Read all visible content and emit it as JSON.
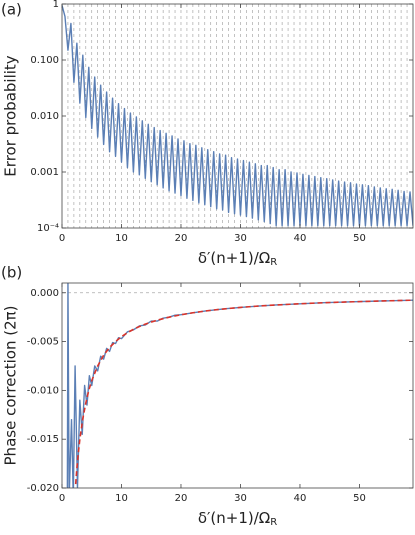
{
  "chart_data": [
    {
      "type": "line",
      "panel_label": "(a)",
      "ylabel": "Error probability",
      "xlabel": "δ′(n+1)/Ω",
      "xlabel_sub": "R",
      "log_y": true,
      "color": "#5b7fb5",
      "xlim": [
        0,
        59
      ],
      "xticks": [
        0,
        10,
        20,
        30,
        40,
        50
      ],
      "ylim": [
        0.0001,
        1
      ],
      "yticks": [
        {
          "value": 0.0001,
          "label": "10⁻⁴"
        },
        0.001,
        {
          "value": 0.01,
          "label": "0.010"
        },
        {
          "value": 0.1,
          "label": "0.100"
        },
        1
      ],
      "xgrid": [
        1,
        2,
        3,
        4,
        5,
        6,
        7,
        8,
        9,
        10,
        11,
        12,
        13,
        14,
        15,
        16,
        17,
        18,
        19,
        20,
        21,
        22,
        23,
        24,
        25,
        26,
        27,
        28,
        29,
        30,
        31,
        32,
        33,
        34,
        35,
        36,
        37,
        38,
        39,
        40,
        41,
        42,
        43,
        44,
        45,
        46,
        47,
        48,
        49,
        50,
        51,
        52,
        53,
        54,
        55,
        56,
        57,
        58
      ],
      "x": [
        0,
        0.5,
        1,
        1.5,
        2,
        2.5,
        3,
        3.5,
        4,
        4.5,
        5,
        5.5,
        6,
        6.5,
        7,
        7.5,
        8,
        8.5,
        9,
        9.5,
        10,
        10.5,
        11,
        11.5,
        12,
        12.5,
        13,
        13.5,
        14,
        14.5,
        15,
        15.5,
        16,
        16.5,
        17,
        17.5,
        18,
        18.5,
        19,
        19.5,
        20,
        20.5,
        21,
        21.5,
        22,
        22.5,
        23,
        23.5,
        24,
        24.5,
        25,
        25.5,
        26,
        26.5,
        27,
        27.5,
        28,
        28.5,
        29,
        29.5,
        30,
        30.5,
        31,
        31.5,
        32,
        32.5,
        33,
        33.5,
        34,
        34.5,
        35,
        35.5,
        36,
        36.5,
        37,
        37.5,
        38,
        38.5,
        39,
        39.5,
        40,
        40.5,
        41,
        41.5,
        42,
        42.5,
        43,
        43.5,
        44,
        44.5,
        45,
        45.5,
        46,
        46.5,
        47,
        47.5,
        48,
        48.5,
        49,
        49.5,
        50,
        50.5,
        51,
        51.5,
        52,
        52.5,
        53,
        53.5,
        54,
        54.5,
        55,
        55.5,
        56,
        56.5,
        57,
        57.5,
        58,
        58.5,
        59
      ],
      "values": [
        0.95,
        0.6,
        0.15,
        0.45,
        0.04,
        0.2,
        0.017,
        0.122,
        0.0094,
        0.074,
        0.006,
        0.0496,
        0.0042,
        0.0355,
        0.0031,
        0.0267,
        0.0023,
        0.0208,
        0.0019,
        0.0166,
        0.0015,
        0.0136,
        0.0012,
        0.0113,
        0.001,
        0.0096,
        0.00089,
        0.0082,
        0.00077,
        0.0071,
        0.00067,
        0.0062,
        0.00059,
        0.0055,
        0.00052,
        0.0049,
        0.00046,
        0.0044,
        0.00042,
        0.0039,
        0.00038,
        0.0036,
        0.00034,
        0.0032,
        0.00031,
        0.003,
        0.00028,
        0.0027,
        0.00026,
        0.0025,
        0.00024,
        0.0023,
        0.00022,
        0.0021,
        0.00021,
        0.002,
        0.00019,
        0.0018,
        0.00018,
        0.0017,
        0.00017,
        0.0016,
        0.00016,
        0.0015,
        0.00015,
        0.0014,
        0.00014,
        0.0013,
        0.00013,
        0.0013,
        0.00012,
        0.0012,
        0.00011,
        0.0011,
        0.00011,
        0.0011,
        0.00011,
        0.001,
        0.00011,
        0.00096,
        0.00011,
        0.00091,
        0.00011,
        0.00087,
        0.00011,
        0.00083,
        0.00011,
        0.00079,
        0.00011,
        0.00076,
        0.00011,
        0.00072,
        0.00011,
        0.00069,
        0.00011,
        0.00066,
        0.00011,
        0.00064,
        0.00011,
        0.00061,
        0.00011,
        0.00059,
        0.00011,
        0.00057,
        0.00011,
        0.00054,
        0.00011,
        0.00052,
        0.00011,
        0.0005,
        0.00011,
        0.00049,
        0.00011,
        0.00047,
        0.00011,
        0.00045,
        0.00011,
        0.00044,
        0.00011
      ]
    },
    {
      "type": "line",
      "panel_label": "(b)",
      "ylabel": "Phase correction (2π)",
      "xlabel": "δ′(n+1)/Ω",
      "xlabel_sub": "R",
      "xlim": [
        0,
        59
      ],
      "xticks": [
        0,
        10,
        20,
        30,
        40,
        50
      ],
      "ylim": [
        -0.02,
        0.001
      ],
      "yticks": [
        {
          "value": 0,
          "label": "0.000"
        },
        -0.005,
        {
          "value": -0.01,
          "label": "-0.010"
        },
        -0.015,
        {
          "value": -0.02,
          "label": "-0.020"
        }
      ],
      "hline": 0,
      "series": [
        {
          "color": "#5b7fb5",
          "dash": false,
          "x": [
            0.9,
            1,
            1.2,
            1.6,
            1.9,
            2.2,
            2.6,
            3,
            3.4,
            3.8,
            4.2,
            4.6,
            5,
            5.5,
            6,
            6.5,
            7,
            7.5,
            8,
            8.5,
            9,
            9.5,
            10,
            11,
            12,
            13,
            14,
            15,
            16,
            17,
            18,
            19,
            20,
            22,
            24,
            26,
            28,
            30,
            33,
            36,
            40,
            44,
            48,
            52,
            55,
            59
          ],
          "values": [
            -0.021,
            0.001,
            -0.021,
            -0.013,
            -0.021,
            -0.0075,
            -0.02,
            -0.011,
            -0.0145,
            -0.0095,
            -0.0115,
            -0.0085,
            -0.0095,
            -0.0075,
            -0.008,
            -0.0065,
            -0.0068,
            -0.0057,
            -0.006,
            -0.0051,
            -0.0052,
            -0.0046,
            -0.0047,
            -0.004,
            -0.0038,
            -0.0034,
            -0.0033,
            -0.0029,
            -0.0029,
            -0.0026,
            -0.0025,
            -0.0023,
            -0.00225,
            -0.00205,
            -0.00188,
            -0.00173,
            -0.00161,
            -0.0015,
            -0.00136,
            -0.00125,
            -0.00113,
            -0.00102,
            -0.00094,
            -0.00087,
            -0.00082,
            -0.00076
          ]
        },
        {
          "color": "#d9342b",
          "dash": true,
          "x": [
            2.3,
            2.5,
            2.75,
            3,
            3.5,
            4,
            4.5,
            5,
            6,
            7,
            8,
            9,
            10,
            11,
            12,
            13,
            14,
            15,
            16,
            18,
            20,
            22,
            24,
            26,
            28,
            30,
            33,
            36,
            40,
            44,
            48,
            52,
            55,
            59
          ],
          "values": [
            -0.0196,
            -0.018,
            -0.0164,
            -0.015,
            -0.0129,
            -0.0113,
            -0.01,
            -0.009,
            -0.0075,
            -0.0064,
            -0.0056,
            -0.005,
            -0.0045,
            -0.00409,
            -0.00375,
            -0.00346,
            -0.00321,
            -0.003,
            -0.00281,
            -0.0025,
            -0.00225,
            -0.00205,
            -0.00188,
            -0.00173,
            -0.00161,
            -0.0015,
            -0.00136,
            -0.00125,
            -0.00113,
            -0.00102,
            -0.00094,
            -0.00087,
            -0.00082,
            -0.00076
          ]
        }
      ]
    }
  ]
}
